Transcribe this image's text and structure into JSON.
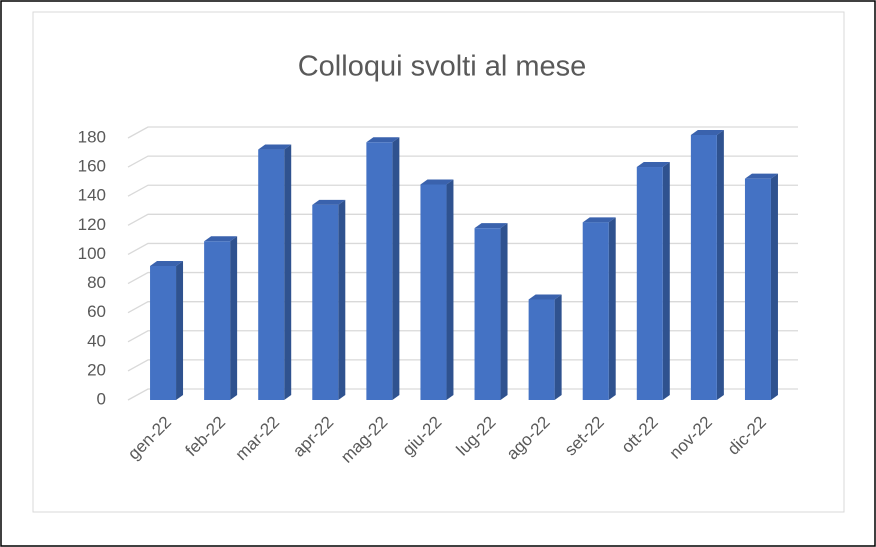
{
  "chart_data": {
    "type": "bar",
    "title": "Colloqui svolti al mese",
    "categories": [
      "gen-22",
      "feb-22",
      "mar-22",
      "apr-22",
      "mag-22",
      "giu-22",
      "lug-22",
      "ago-22",
      "set-22",
      "ott-22",
      "nov-22",
      "dic-22"
    ],
    "values": [
      90,
      107,
      170,
      132,
      175,
      146,
      116,
      67,
      120,
      158,
      180,
      150
    ],
    "color": "#4472c4",
    "ylim": [
      0,
      180
    ],
    "yticks": [
      0,
      20,
      40,
      60,
      80,
      100,
      120,
      140,
      160,
      180
    ],
    "grid": true
  }
}
